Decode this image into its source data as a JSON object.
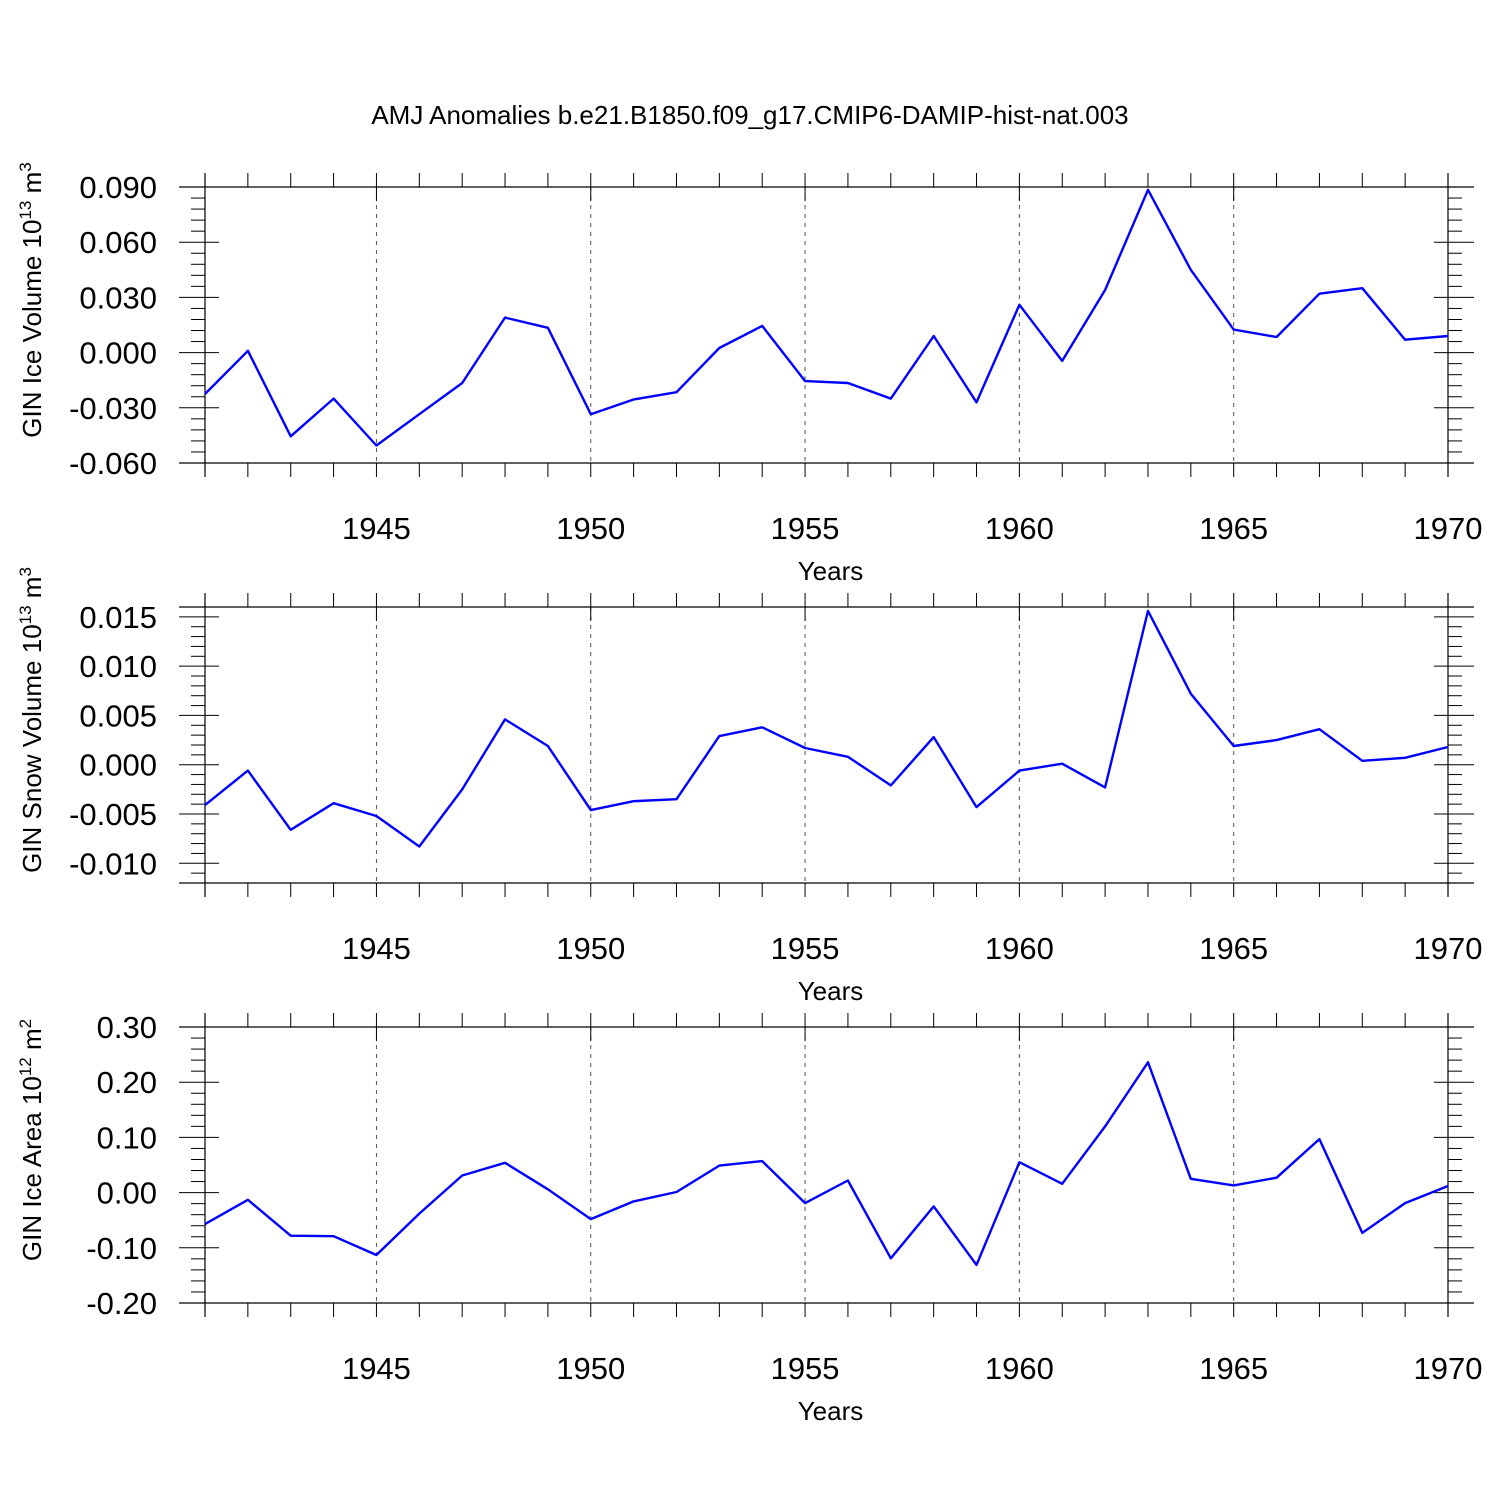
{
  "title": "AMJ Anomalies b.e21.B1850.f09_g17.CMIP6-DAMIP-hist-nat.003",
  "colors": {
    "line": "#0000ff",
    "axis": "#000000",
    "grid": "#555555"
  },
  "chart_data": [
    {
      "type": "line",
      "ylabel": "GIN Ice Volume 10",
      "ylabel_exp": "13",
      "ylabel_unit": " m",
      "ylabel_unit_exp": "3",
      "xlabel": "Years",
      "xlim": [
        1941,
        1970
      ],
      "ylim": [
        -0.06,
        0.09
      ],
      "xticks": [
        1945,
        1950,
        1955,
        1960,
        1965,
        1970
      ],
      "xtick_labels": [
        "1945",
        "1950",
        "1955",
        "1960",
        "1965",
        "1970"
      ],
      "yticks": [
        -0.06,
        -0.03,
        0.0,
        0.03,
        0.06,
        0.09
      ],
      "ytick_labels": [
        "-0.060",
        "-0.030",
        "0.000",
        "0.030",
        "0.060",
        "0.090"
      ],
      "x": [
        1941,
        1942,
        1943,
        1944,
        1945,
        1946,
        1947,
        1948,
        1949,
        1950,
        1951,
        1952,
        1953,
        1954,
        1955,
        1956,
        1957,
        1958,
        1959,
        1960,
        1961,
        1962,
        1963,
        1964,
        1965,
        1966,
        1967,
        1968,
        1969,
        1970
      ],
      "values": [
        -0.0225,
        0.001,
        -0.0455,
        -0.025,
        -0.0505,
        -0.0335,
        -0.0165,
        0.019,
        0.0135,
        -0.0335,
        -0.0255,
        -0.0215,
        0.0025,
        0.0145,
        -0.0155,
        -0.0165,
        -0.025,
        0.009,
        -0.027,
        0.026,
        -0.0045,
        0.034,
        0.0885,
        0.045,
        0.0125,
        0.0085,
        0.032,
        0.035,
        0.007,
        0.009
      ]
    },
    {
      "type": "line",
      "ylabel": "GIN Snow Volume 10",
      "ylabel_exp": "13",
      "ylabel_unit": " m",
      "ylabel_unit_exp": "3",
      "xlabel": "Years",
      "xlim": [
        1941,
        1970
      ],
      "ylim": [
        -0.012,
        0.016
      ],
      "xticks": [
        1945,
        1950,
        1955,
        1960,
        1965,
        1970
      ],
      "xtick_labels": [
        "1945",
        "1950",
        "1955",
        "1960",
        "1965",
        "1970"
      ],
      "yticks": [
        -0.01,
        -0.005,
        0.0,
        0.005,
        0.01,
        0.015
      ],
      "ytick_labels": [
        "-0.010",
        "-0.005",
        "0.000",
        "0.005",
        "0.010",
        "0.015"
      ],
      "x": [
        1941,
        1942,
        1943,
        1944,
        1945,
        1946,
        1947,
        1948,
        1949,
        1950,
        1951,
        1952,
        1953,
        1954,
        1955,
        1956,
        1957,
        1958,
        1959,
        1960,
        1961,
        1962,
        1963,
        1964,
        1965,
        1966,
        1967,
        1968,
        1969,
        1970
      ],
      "values": [
        -0.0041,
        -0.0006,
        -0.0066,
        -0.0039,
        -0.0052,
        -0.0083,
        -0.0025,
        0.0046,
        0.0019,
        -0.0046,
        -0.0037,
        -0.0035,
        0.0029,
        0.0038,
        0.0017,
        0.0008,
        -0.0021,
        0.0028,
        -0.0043,
        -0.0006,
        0.0001,
        -0.0023,
        0.0156,
        0.0072,
        0.0019,
        0.0025,
        0.0036,
        0.0004,
        0.0007,
        0.0018
      ]
    },
    {
      "type": "line",
      "ylabel": "GIN Ice Area 10",
      "ylabel_exp": "12",
      "ylabel_unit": " m",
      "ylabel_unit_exp": "2",
      "xlabel": "Years",
      "xlim": [
        1941,
        1970
      ],
      "ylim": [
        -0.2,
        0.3
      ],
      "xticks": [
        1945,
        1950,
        1955,
        1960,
        1965,
        1970
      ],
      "xtick_labels": [
        "1945",
        "1950",
        "1955",
        "1960",
        "1965",
        "1970"
      ],
      "yticks": [
        -0.2,
        -0.1,
        0.0,
        0.1,
        0.2,
        0.3
      ],
      "ytick_labels": [
        "-0.20",
        "-0.10",
        "0.00",
        "0.10",
        "0.20",
        "0.30"
      ],
      "x": [
        1941,
        1942,
        1943,
        1944,
        1945,
        1946,
        1947,
        1948,
        1949,
        1950,
        1951,
        1952,
        1953,
        1954,
        1955,
        1956,
        1957,
        1958,
        1959,
        1960,
        1961,
        1962,
        1963,
        1964,
        1965,
        1966,
        1967,
        1968,
        1969,
        1970
      ],
      "values": [
        -0.057,
        -0.013,
        -0.078,
        -0.079,
        -0.113,
        -0.038,
        0.031,
        0.054,
        0.006,
        -0.048,
        -0.016,
        0.001,
        0.049,
        0.057,
        -0.019,
        0.022,
        -0.119,
        -0.025,
        -0.131,
        0.055,
        0.016,
        0.12,
        0.236,
        0.025,
        0.013,
        0.027,
        0.097,
        -0.073,
        -0.019,
        0.012
      ]
    }
  ]
}
